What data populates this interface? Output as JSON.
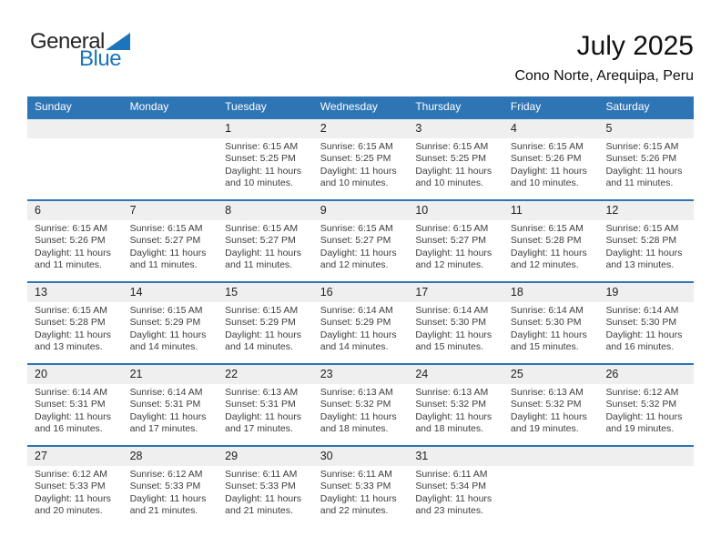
{
  "logo": {
    "part1": "General",
    "part2": "Blue"
  },
  "header": {
    "title": "July 2025",
    "subtitle": "Cono Norte, Arequipa, Peru"
  },
  "colors": {
    "header_bar_blue": "#2e75b6",
    "row_border_blue": "#2e75b6",
    "logo_blue": "#1b75bb",
    "date_band_gray": "#efefef",
    "weekday_text": "#ffffff",
    "body_text": "#3d3d3d"
  },
  "weekday_headers": [
    "Sunday",
    "Monday",
    "Tuesday",
    "Wednesday",
    "Thursday",
    "Friday",
    "Saturday"
  ],
  "weeks": [
    [
      null,
      null,
      {
        "date": "1",
        "lines": [
          "Sunrise: 6:15 AM",
          "Sunset: 5:25 PM",
          "Daylight: 11 hours and 10 minutes."
        ]
      },
      {
        "date": "2",
        "lines": [
          "Sunrise: 6:15 AM",
          "Sunset: 5:25 PM",
          "Daylight: 11 hours and 10 minutes."
        ]
      },
      {
        "date": "3",
        "lines": [
          "Sunrise: 6:15 AM",
          "Sunset: 5:25 PM",
          "Daylight: 11 hours and 10 minutes."
        ]
      },
      {
        "date": "4",
        "lines": [
          "Sunrise: 6:15 AM",
          "Sunset: 5:26 PM",
          "Daylight: 11 hours and 10 minutes."
        ]
      },
      {
        "date": "5",
        "lines": [
          "Sunrise: 6:15 AM",
          "Sunset: 5:26 PM",
          "Daylight: 11 hours and 11 minutes."
        ]
      }
    ],
    [
      {
        "date": "6",
        "lines": [
          "Sunrise: 6:15 AM",
          "Sunset: 5:26 PM",
          "Daylight: 11 hours and 11 minutes."
        ]
      },
      {
        "date": "7",
        "lines": [
          "Sunrise: 6:15 AM",
          "Sunset: 5:27 PM",
          "Daylight: 11 hours and 11 minutes."
        ]
      },
      {
        "date": "8",
        "lines": [
          "Sunrise: 6:15 AM",
          "Sunset: 5:27 PM",
          "Daylight: 11 hours and 11 minutes."
        ]
      },
      {
        "date": "9",
        "lines": [
          "Sunrise: 6:15 AM",
          "Sunset: 5:27 PM",
          "Daylight: 11 hours and 12 minutes."
        ]
      },
      {
        "date": "10",
        "lines": [
          "Sunrise: 6:15 AM",
          "Sunset: 5:27 PM",
          "Daylight: 11 hours and 12 minutes."
        ]
      },
      {
        "date": "11",
        "lines": [
          "Sunrise: 6:15 AM",
          "Sunset: 5:28 PM",
          "Daylight: 11 hours and 12 minutes."
        ]
      },
      {
        "date": "12",
        "lines": [
          "Sunrise: 6:15 AM",
          "Sunset: 5:28 PM",
          "Daylight: 11 hours and 13 minutes."
        ]
      }
    ],
    [
      {
        "date": "13",
        "lines": [
          "Sunrise: 6:15 AM",
          "Sunset: 5:28 PM",
          "Daylight: 11 hours and 13 minutes."
        ]
      },
      {
        "date": "14",
        "lines": [
          "Sunrise: 6:15 AM",
          "Sunset: 5:29 PM",
          "Daylight: 11 hours and 14 minutes."
        ]
      },
      {
        "date": "15",
        "lines": [
          "Sunrise: 6:15 AM",
          "Sunset: 5:29 PM",
          "Daylight: 11 hours and 14 minutes."
        ]
      },
      {
        "date": "16",
        "lines": [
          "Sunrise: 6:14 AM",
          "Sunset: 5:29 PM",
          "Daylight: 11 hours and 14 minutes."
        ]
      },
      {
        "date": "17",
        "lines": [
          "Sunrise: 6:14 AM",
          "Sunset: 5:30 PM",
          "Daylight: 11 hours and 15 minutes."
        ]
      },
      {
        "date": "18",
        "lines": [
          "Sunrise: 6:14 AM",
          "Sunset: 5:30 PM",
          "Daylight: 11 hours and 15 minutes."
        ]
      },
      {
        "date": "19",
        "lines": [
          "Sunrise: 6:14 AM",
          "Sunset: 5:30 PM",
          "Daylight: 11 hours and 16 minutes."
        ]
      }
    ],
    [
      {
        "date": "20",
        "lines": [
          "Sunrise: 6:14 AM",
          "Sunset: 5:31 PM",
          "Daylight: 11 hours and 16 minutes."
        ]
      },
      {
        "date": "21",
        "lines": [
          "Sunrise: 6:14 AM",
          "Sunset: 5:31 PM",
          "Daylight: 11 hours and 17 minutes."
        ]
      },
      {
        "date": "22",
        "lines": [
          "Sunrise: 6:13 AM",
          "Sunset: 5:31 PM",
          "Daylight: 11 hours and 17 minutes."
        ]
      },
      {
        "date": "23",
        "lines": [
          "Sunrise: 6:13 AM",
          "Sunset: 5:32 PM",
          "Daylight: 11 hours and 18 minutes."
        ]
      },
      {
        "date": "24",
        "lines": [
          "Sunrise: 6:13 AM",
          "Sunset: 5:32 PM",
          "Daylight: 11 hours and 18 minutes."
        ]
      },
      {
        "date": "25",
        "lines": [
          "Sunrise: 6:13 AM",
          "Sunset: 5:32 PM",
          "Daylight: 11 hours and 19 minutes."
        ]
      },
      {
        "date": "26",
        "lines": [
          "Sunrise: 6:12 AM",
          "Sunset: 5:32 PM",
          "Daylight: 11 hours and 19 minutes."
        ]
      }
    ],
    [
      {
        "date": "27",
        "lines": [
          "Sunrise: 6:12 AM",
          "Sunset: 5:33 PM",
          "Daylight: 11 hours and 20 minutes."
        ]
      },
      {
        "date": "28",
        "lines": [
          "Sunrise: 6:12 AM",
          "Sunset: 5:33 PM",
          "Daylight: 11 hours and 21 minutes."
        ]
      },
      {
        "date": "29",
        "lines": [
          "Sunrise: 6:11 AM",
          "Sunset: 5:33 PM",
          "Daylight: 11 hours and 21 minutes."
        ]
      },
      {
        "date": "30",
        "lines": [
          "Sunrise: 6:11 AM",
          "Sunset: 5:33 PM",
          "Daylight: 11 hours and 22 minutes."
        ]
      },
      {
        "date": "31",
        "lines": [
          "Sunrise: 6:11 AM",
          "Sunset: 5:34 PM",
          "Daylight: 11 hours and 23 minutes."
        ]
      },
      null,
      null
    ]
  ]
}
